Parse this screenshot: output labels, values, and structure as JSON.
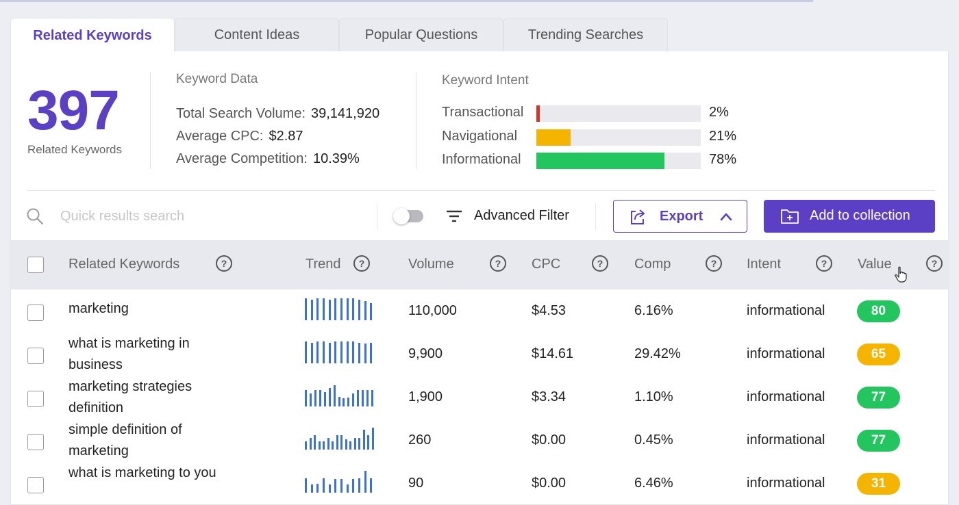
{
  "tabs": [
    {
      "label": "Related Keywords",
      "active": true
    },
    {
      "label": "Content Ideas",
      "active": false
    },
    {
      "label": "Popular Questions",
      "active": false
    },
    {
      "label": "Trending Searches",
      "active": false
    }
  ],
  "summary": {
    "count": "397",
    "count_label": "Related Keywords",
    "keyword_data": {
      "title": "Keyword Data",
      "rows": [
        {
          "label": "Total Search Volume:",
          "value": "39,141,920"
        },
        {
          "label": "Average CPC:",
          "value": "$2.87"
        },
        {
          "label": "Average Competition:",
          "value": "10.39%"
        }
      ]
    },
    "keyword_intent": {
      "title": "Keyword Intent",
      "rows": [
        {
          "label": "Transactional",
          "pct": "2%",
          "value": 0.02,
          "color": "#d9342b"
        },
        {
          "label": "Navigational",
          "pct": "21%",
          "value": 0.21,
          "color": "#f5b400"
        },
        {
          "label": "Informational",
          "pct": "78%",
          "value": 0.78,
          "color": "#22c55e"
        }
      ]
    }
  },
  "toolbar": {
    "search_placeholder": "Quick results search",
    "filter_label": "Advanced Filter",
    "export_label": "Export",
    "add_label": "Add to collection",
    "toggle_on": false
  },
  "table": {
    "columns": [
      "Related Keywords",
      "Trend",
      "Volume",
      "CPC",
      "Comp",
      "Intent",
      "Value"
    ],
    "rows": [
      {
        "keyword": "marketing",
        "trend": [
          0.93,
          0.88,
          0.93,
          0.93,
          0.88,
          0.93,
          0.93,
          0.93,
          0.93,
          0.88,
          0.82,
          0.74
        ],
        "volume": "110,000",
        "cpc": "$4.53",
        "comp": "6.16%",
        "intent": "informational",
        "value": "80",
        "value_color": "#22c55e"
      },
      {
        "keyword": "what is marketing in business",
        "trend": [
          0.93,
          0.88,
          0.93,
          0.93,
          0.88,
          0.93,
          0.93,
          0.93,
          0.93,
          0.88,
          0.85,
          0.88
        ],
        "volume": "9,900",
        "cpc": "$14.61",
        "comp": "29.42%",
        "intent": "informational",
        "value": "65",
        "value_color": "#f5b400"
      },
      {
        "keyword": "marketing strategies definition",
        "trend": [
          0.7,
          0.55,
          0.7,
          0.7,
          0.62,
          0.78,
          0.9,
          0.4,
          0.35,
          0.38,
          0.55,
          0.72,
          0.72,
          0.72,
          0.72
        ],
        "volume": "1,900",
        "cpc": "$3.34",
        "comp": "1.10%",
        "intent": "informational",
        "value": "77",
        "value_color": "#22c55e"
      },
      {
        "keyword": "simple definition of marketing",
        "trend": [
          0.35,
          0.5,
          0.62,
          0.35,
          0.35,
          0.5,
          0.35,
          0.62,
          0.62,
          0.45,
          0.35,
          0.5,
          0.5,
          0.85,
          0.62,
          0.95
        ],
        "volume": "260",
        "cpc": "$0.00",
        "comp": "0.45%",
        "intent": "informational",
        "value": "77",
        "value_color": "#22c55e"
      },
      {
        "keyword": "what is marketing to you",
        "trend": [
          0.62,
          0.35,
          0.38,
          0.62,
          0.35,
          0.6,
          0.6,
          0.35,
          0.6,
          0.62,
          0.95,
          0.62
        ],
        "volume": "90",
        "cpc": "$0.00",
        "comp": "6.46%",
        "intent": "informational",
        "value": "31",
        "value_color": "#f5b400"
      }
    ]
  }
}
